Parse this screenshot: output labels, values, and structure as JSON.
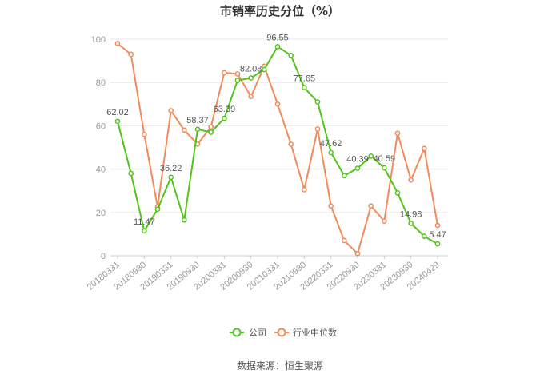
{
  "chart_data": {
    "type": "line",
    "title": "市销率历史分位（%）",
    "ylim": [
      0,
      100
    ],
    "yticks": [
      0,
      20,
      40,
      60,
      80,
      100
    ],
    "grid": true,
    "legend_position": "bottom",
    "x_labels": [
      "20180331",
      "20180930",
      "20190331",
      "20190930",
      "20200331",
      "20200930",
      "20210331",
      "20210930",
      "20220331",
      "20220930",
      "20230331",
      "20230930",
      "20240429"
    ],
    "x_label_indices": [
      0,
      2,
      4,
      6,
      8,
      10,
      12,
      14,
      16,
      18,
      20,
      22,
      24
    ],
    "x_count": 25,
    "series": [
      {
        "name": "公司",
        "color": "#52c41a",
        "values": [
          62.02,
          38.0,
          11.47,
          21.5,
          36.22,
          16.5,
          58.37,
          57.0,
          63.39,
          81.0,
          82.08,
          86.0,
          96.55,
          92.5,
          77.65,
          71.0,
          47.62,
          37.0,
          40.39,
          46.0,
          40.59,
          29.0,
          14.98,
          9.0,
          5.47
        ],
        "labels": {
          "0": "62.02",
          "2": "11.47",
          "4": "36.22",
          "6": "58.37",
          "8": "63.39",
          "10": "82.08",
          "12": "96.55",
          "14": "77.65",
          "16": "47.62",
          "18": "40.39",
          "20": "40.59",
          "22": "14.98",
          "24": "5.47"
        }
      },
      {
        "name": "行业中位数",
        "color": "#f28b5b",
        "values": [
          98.0,
          93.0,
          56.0,
          22.5,
          67.0,
          58.0,
          51.5,
          59.5,
          84.5,
          84.0,
          73.5,
          87.5,
          70.0,
          51.5,
          30.5,
          58.5,
          23.0,
          7.0,
          1.0,
          23.0,
          16.0,
          56.5,
          35.0,
          49.5,
          14.0
        ]
      }
    ]
  },
  "legend": [
    {
      "label": "公司",
      "color": "#52c41a"
    },
    {
      "label": "行业中位数",
      "color": "#f28b5b"
    }
  ],
  "source": "数据来源：恒生聚源"
}
